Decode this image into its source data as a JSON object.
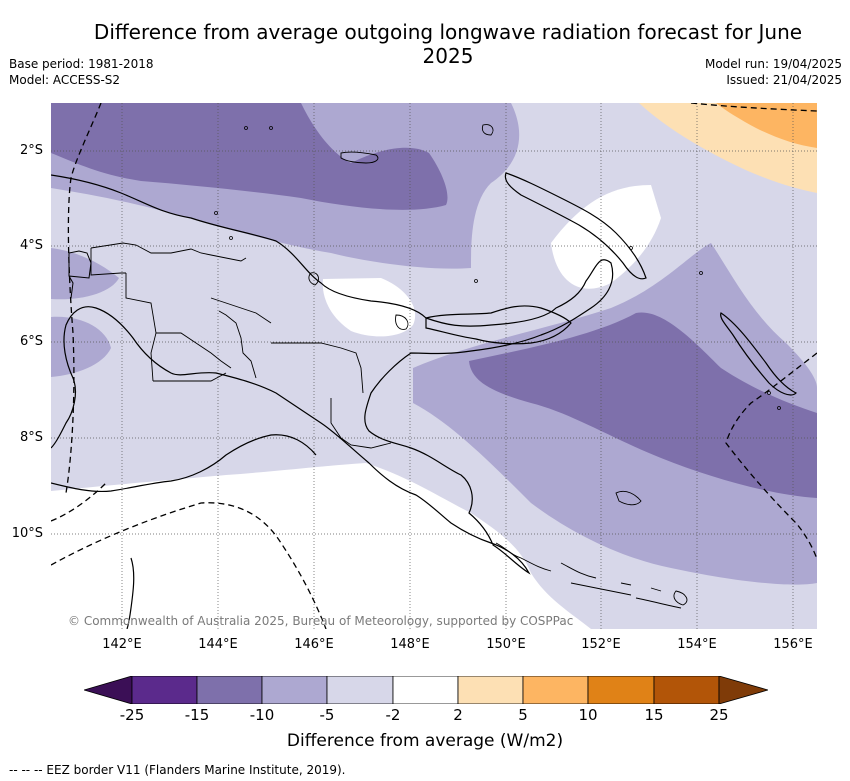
{
  "title": "Difference from average outgoing longwave radiation forecast for June 2025",
  "base_period": "Base period: 1981-2018",
  "model": "Model: ACCESS-S2",
  "model_run": "Model run: 19/04/2025",
  "issued": "Issued: 21/04/2025",
  "copyright": "© Commonwealth of Australia 2025, Bureau of Meteorology, supported by COSPPac",
  "lat_labels": [
    "2°S",
    "4°S",
    "6°S",
    "8°S",
    "10°S"
  ],
  "lon_labels": [
    "142°E",
    "144°E",
    "146°E",
    "148°E",
    "150°E",
    "152°E",
    "154°E",
    "156°E"
  ],
  "colorbar": {
    "label": "Difference from average (W/m2)",
    "ticks": [
      "-25",
      "-15",
      "-10",
      "-5",
      "-2",
      "2",
      "5",
      "10",
      "15",
      "25"
    ],
    "colors": [
      "#3b0f56",
      "#5b2a8c",
      "#7e70ab",
      "#ada8d1",
      "#d7d7e9",
      "#ffffff",
      "#fde0b4",
      "#fdb562",
      "#e08217",
      "#b25508",
      "#7f3b08"
    ]
  },
  "footnote": "-- -- -- EEZ border V11 (Flanders Marine Institute, 2019)."
}
